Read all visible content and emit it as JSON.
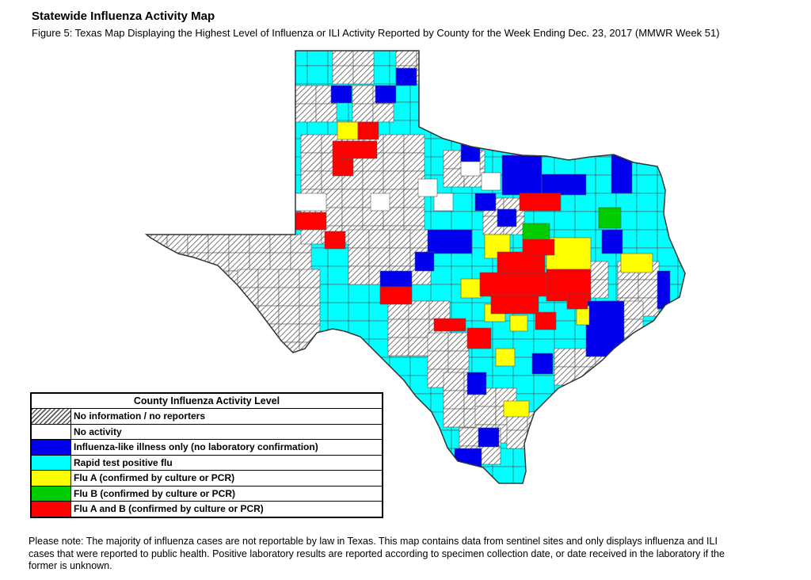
{
  "header": {
    "title": "Statewide Influenza Activity Map",
    "subtitle": "Figure 5: Texas Map Displaying the Highest Level of Influenza or ILI Activity Reported by County for the Week Ending Dec. 23, 2017 (MMWR Week 51)"
  },
  "colors": {
    "none": "#ffffff",
    "ili": "#0000ee",
    "rapid": "#00ffff",
    "flu_a": "#ffff00",
    "flu_b": "#00cc00",
    "flu_ab": "#ff0000",
    "border": "#555555"
  },
  "legend": {
    "title": "County Influenza Activity Level",
    "items": [
      {
        "label": "No information / no reporters",
        "key": "hatch"
      },
      {
        "label": "No activity",
        "key": "none"
      },
      {
        "label": "Influenza-like illness only (no laboratory confirmation)",
        "key": "ili"
      },
      {
        "label": "Rapid test positive flu",
        "key": "rapid"
      },
      {
        "label": "Flu A (confirmed by culture or PCR)",
        "key": "flu_a"
      },
      {
        "label": "Flu B (confirmed by culture or PCR)",
        "key": "flu_b"
      },
      {
        "label": "Flu A and B (confirmed by culture or PCR)",
        "key": "flu_ab"
      }
    ]
  },
  "note": "Please note: The majority of influenza cases are not reportable by law in Texas. This map contains data from sentinel sites and only displays influenza and ILI cases that were reported to public health. Positive laboratory results are reported according to specimen collection date, or date received in the laboratory if the former is unknown."
}
